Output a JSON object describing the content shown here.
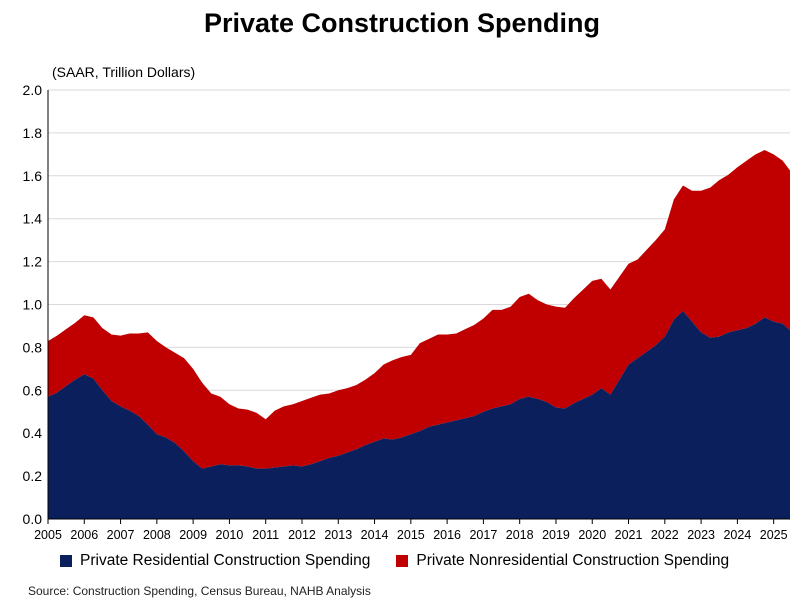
{
  "chart_data": {
    "type": "area",
    "stacked": true,
    "title": "Private Construction Spending",
    "units_label": "(SAAR, Trillion Dollars)",
    "source": "Source: Construction Spending, Census Bureau, NAHB Analysis",
    "ylim": [
      0,
      2.0
    ],
    "yticks": [
      "0.0",
      "0.2",
      "0.4",
      "0.6",
      "0.8",
      "1.0",
      "1.2",
      "1.4",
      "1.6",
      "1.8",
      "2.0"
    ],
    "xlim": [
      2005.0,
      2025.45
    ],
    "xticks": [
      "2005",
      "2006",
      "2007",
      "2008",
      "2009",
      "2010",
      "2011",
      "2012",
      "2013",
      "2014",
      "2015",
      "2016",
      "2017",
      "2018",
      "2019",
      "2020",
      "2021",
      "2022",
      "2023",
      "2024",
      "2025"
    ],
    "grid": true,
    "legend_position": "bottom",
    "x": [
      2005.0,
      2005.25,
      2005.5,
      2005.75,
      2006.0,
      2006.25,
      2006.5,
      2006.75,
      2007.0,
      2007.25,
      2007.5,
      2007.75,
      2008.0,
      2008.25,
      2008.5,
      2008.75,
      2009.0,
      2009.25,
      2009.5,
      2009.75,
      2010.0,
      2010.25,
      2010.5,
      2010.75,
      2011.0,
      2011.25,
      2011.5,
      2011.75,
      2012.0,
      2012.25,
      2012.5,
      2012.75,
      2013.0,
      2013.25,
      2013.5,
      2013.75,
      2014.0,
      2014.25,
      2014.5,
      2014.75,
      2015.0,
      2015.25,
      2015.5,
      2015.75,
      2016.0,
      2016.25,
      2016.5,
      2016.75,
      2017.0,
      2017.25,
      2017.5,
      2017.75,
      2018.0,
      2018.25,
      2018.5,
      2018.75,
      2019.0,
      2019.25,
      2019.5,
      2019.75,
      2020.0,
      2020.25,
      2020.5,
      2020.75,
      2021.0,
      2021.25,
      2021.5,
      2021.75,
      2022.0,
      2022.25,
      2022.5,
      2022.75,
      2023.0,
      2023.25,
      2023.5,
      2023.75,
      2024.0,
      2024.25,
      2024.5,
      2024.75,
      2025.0,
      2025.25,
      2025.45
    ],
    "series": [
      {
        "name": "Private Residential Construction Spending",
        "color": "#0a1f5c",
        "values": [
          0.57,
          0.59,
          0.62,
          0.65,
          0.675,
          0.655,
          0.6,
          0.55,
          0.525,
          0.505,
          0.48,
          0.44,
          0.395,
          0.38,
          0.355,
          0.315,
          0.27,
          0.235,
          0.245,
          0.255,
          0.25,
          0.25,
          0.245,
          0.235,
          0.235,
          0.24,
          0.245,
          0.25,
          0.245,
          0.255,
          0.27,
          0.285,
          0.295,
          0.31,
          0.325,
          0.345,
          0.36,
          0.375,
          0.37,
          0.38,
          0.395,
          0.41,
          0.43,
          0.44,
          0.45,
          0.46,
          0.47,
          0.48,
          0.5,
          0.515,
          0.525,
          0.535,
          0.56,
          0.57,
          0.56,
          0.545,
          0.52,
          0.515,
          0.54,
          0.56,
          0.58,
          0.61,
          0.58,
          0.65,
          0.72,
          0.75,
          0.78,
          0.81,
          0.85,
          0.93,
          0.97,
          0.92,
          0.87,
          0.845,
          0.85,
          0.87,
          0.88,
          0.89,
          0.91,
          0.94,
          0.92,
          0.91,
          0.88
        ]
      },
      {
        "name": "Private Nonresidential Construction Spending",
        "color": "#c00000",
        "values": [
          0.26,
          0.265,
          0.265,
          0.265,
          0.275,
          0.285,
          0.29,
          0.31,
          0.33,
          0.36,
          0.385,
          0.43,
          0.435,
          0.42,
          0.42,
          0.435,
          0.43,
          0.4,
          0.34,
          0.315,
          0.285,
          0.265,
          0.265,
          0.26,
          0.23,
          0.265,
          0.28,
          0.285,
          0.305,
          0.31,
          0.31,
          0.3,
          0.305,
          0.3,
          0.3,
          0.305,
          0.32,
          0.345,
          0.37,
          0.375,
          0.37,
          0.41,
          0.41,
          0.42,
          0.41,
          0.405,
          0.415,
          0.425,
          0.435,
          0.46,
          0.45,
          0.455,
          0.475,
          0.48,
          0.46,
          0.455,
          0.47,
          0.47,
          0.49,
          0.51,
          0.53,
          0.51,
          0.49,
          0.48,
          0.47,
          0.46,
          0.475,
          0.49,
          0.5,
          0.56,
          0.585,
          0.61,
          0.66,
          0.7,
          0.73,
          0.735,
          0.76,
          0.78,
          0.79,
          0.78,
          0.78,
          0.76,
          0.745
        ]
      }
    ]
  }
}
